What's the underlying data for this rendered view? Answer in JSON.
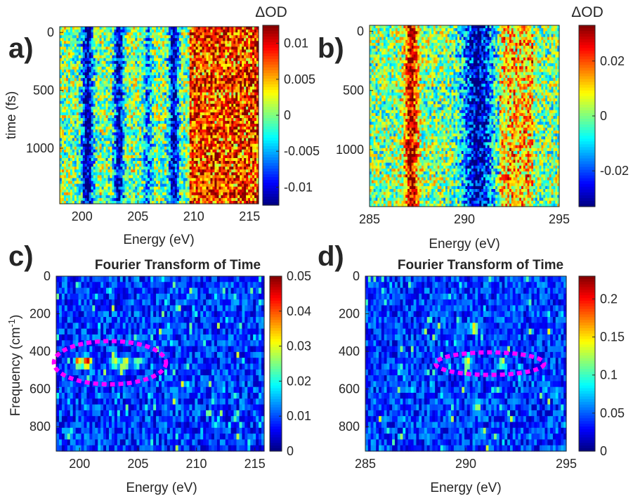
{
  "figure": {
    "panels": [
      "a)",
      "b)",
      "c)",
      "d)"
    ]
  },
  "chart_data": [
    {
      "id": "a",
      "type": "heatmap",
      "panel_label": "a)",
      "title": "",
      "xlabel": "Energy (eV)",
      "ylabel": "time (fs)",
      "xlim": [
        198,
        215.8
      ],
      "ylim": [
        -50,
        1480
      ],
      "y_reversed": true,
      "xticks": [
        "200",
        "205",
        "210",
        "215"
      ],
      "xtick_values": [
        200,
        205,
        210,
        215
      ],
      "yticks": [
        "0",
        "500",
        "1000"
      ],
      "ytick_values": [
        0,
        500,
        1000
      ],
      "colorbar": {
        "label": "ΔOD",
        "min": -0.0125,
        "max": 0.0125,
        "ticks": [
          "0.01",
          "0.005",
          "0",
          "-0.005",
          "-0.01"
        ],
        "tick_values": [
          0.01,
          0.005,
          0,
          -0.005,
          -0.01
        ]
      },
      "colormap": "jet",
      "features": [
        {
          "kind": "negative_band",
          "energy": 200.5,
          "width": 0.5,
          "amplitude": -0.012
        },
        {
          "kind": "negative_band",
          "energy": 203.3,
          "width": 0.45,
          "amplitude": -0.011
        },
        {
          "kind": "negative_band",
          "energy": 205.9,
          "width": 0.4,
          "amplitude": -0.006
        },
        {
          "kind": "negative_band",
          "energy": 208.2,
          "width": 0.45,
          "amplitude": -0.011
        },
        {
          "kind": "positive_region",
          "energy_from": 209.7,
          "energy_to": 215.8,
          "amplitude": 0.008
        }
      ]
    },
    {
      "id": "b",
      "type": "heatmap",
      "panel_label": "b)",
      "title": "",
      "xlabel": "Energy (eV)",
      "ylabel": "",
      "xlim": [
        285,
        295
      ],
      "ylim": [
        -50,
        1480
      ],
      "y_reversed": true,
      "xticks": [
        "285",
        "290",
        "295"
      ],
      "xtick_values": [
        285,
        290,
        295
      ],
      "yticks": [
        "0",
        "500",
        "1000"
      ],
      "ytick_values": [
        0,
        500,
        1000
      ],
      "colorbar": {
        "label": "ΔOD",
        "min": -0.033,
        "max": 0.033,
        "ticks": [
          "0.02",
          "0",
          "-0.02"
        ],
        "tick_values": [
          0.02,
          0,
          -0.02
        ]
      },
      "colormap": "jet",
      "features": [
        {
          "kind": "positive_band",
          "energy": 287.2,
          "width": 0.35,
          "amplitude": 0.03
        },
        {
          "kind": "negative_band",
          "energy": 290.7,
          "width": 0.8,
          "amplitude": -0.03
        },
        {
          "kind": "positive_region",
          "energy_from": 291.8,
          "energy_to": 293.6,
          "amplitude": 0.012
        }
      ]
    },
    {
      "id": "c",
      "type": "heatmap",
      "panel_label": "c)",
      "title": "Fourier Transform of Time",
      "xlabel": "Energy (eV)",
      "ylabel": "Frequency (cm-1)",
      "xlim": [
        198,
        215.8
      ],
      "ylim": [
        0,
        930
      ],
      "y_reversed": true,
      "xticks": [
        "200",
        "205",
        "210",
        "215"
      ],
      "xtick_values": [
        200,
        205,
        210,
        215
      ],
      "yticks": [
        "0",
        "200",
        "400",
        "600",
        "800"
      ],
      "ytick_values": [
        0,
        200,
        400,
        600,
        800
      ],
      "colorbar": {
        "label": "",
        "min": 0,
        "max": 0.05,
        "ticks": [
          "0.05",
          "0.04",
          "0.03",
          "0.02",
          "0.01",
          "0"
        ],
        "tick_values": [
          0.05,
          0.04,
          0.03,
          0.02,
          0.01,
          0
        ]
      },
      "colormap": "jet",
      "peaks": [
        {
          "energy": 199.9,
          "frequency": 460,
          "value": 0.035
        },
        {
          "energy": 200.7,
          "frequency": 460,
          "value": 0.043
        },
        {
          "energy": 203.0,
          "frequency": 460,
          "value": 0.028
        },
        {
          "energy": 203.9,
          "frequency": 460,
          "value": 0.03
        },
        {
          "energy": 205.0,
          "frequency": 460,
          "value": 0.016
        }
      ],
      "annotations": [
        {
          "kind": "dashed_ellipse",
          "color": "#ff00ff",
          "center_energy": 202.6,
          "center_frequency": 460,
          "half_width_energy": 4.8,
          "half_height_frequency": 115
        }
      ]
    },
    {
      "id": "d",
      "type": "heatmap",
      "panel_label": "d)",
      "title": "Fourier Transform of Time",
      "xlabel": "Energy (eV)",
      "ylabel": "",
      "xlim": [
        285,
        295
      ],
      "ylim": [
        0,
        930
      ],
      "y_reversed": true,
      "xticks": [
        "285",
        "290",
        "295"
      ],
      "xtick_values": [
        285,
        290,
        295
      ],
      "yticks": [
        "0",
        "200",
        "400",
        "600",
        "800"
      ],
      "ytick_values": [
        0,
        200,
        400,
        600,
        800
      ],
      "colorbar": {
        "label": "",
        "min": 0,
        "max": 0.23,
        "ticks": [
          "0.2",
          "0.15",
          "0.1",
          "0.05",
          "0"
        ],
        "tick_values": [
          0.2,
          0.15,
          0.1,
          0.05,
          0
        ]
      },
      "colormap": "jet",
      "peaks": [
        {
          "energy": 290.1,
          "frequency": 460,
          "value": 0.13
        },
        {
          "energy": 291.8,
          "frequency": 460,
          "value": 0.11
        },
        {
          "energy": 290.4,
          "frequency": 270,
          "value": 0.09
        },
        {
          "energy": 290.6,
          "frequency": 680,
          "value": 0.09
        }
      ],
      "annotations": [
        {
          "kind": "dashed_ellipse",
          "color": "#ff00ff",
          "center_energy": 291.2,
          "center_frequency": 465,
          "half_width_energy": 2.7,
          "half_height_frequency": 60
        }
      ]
    }
  ]
}
